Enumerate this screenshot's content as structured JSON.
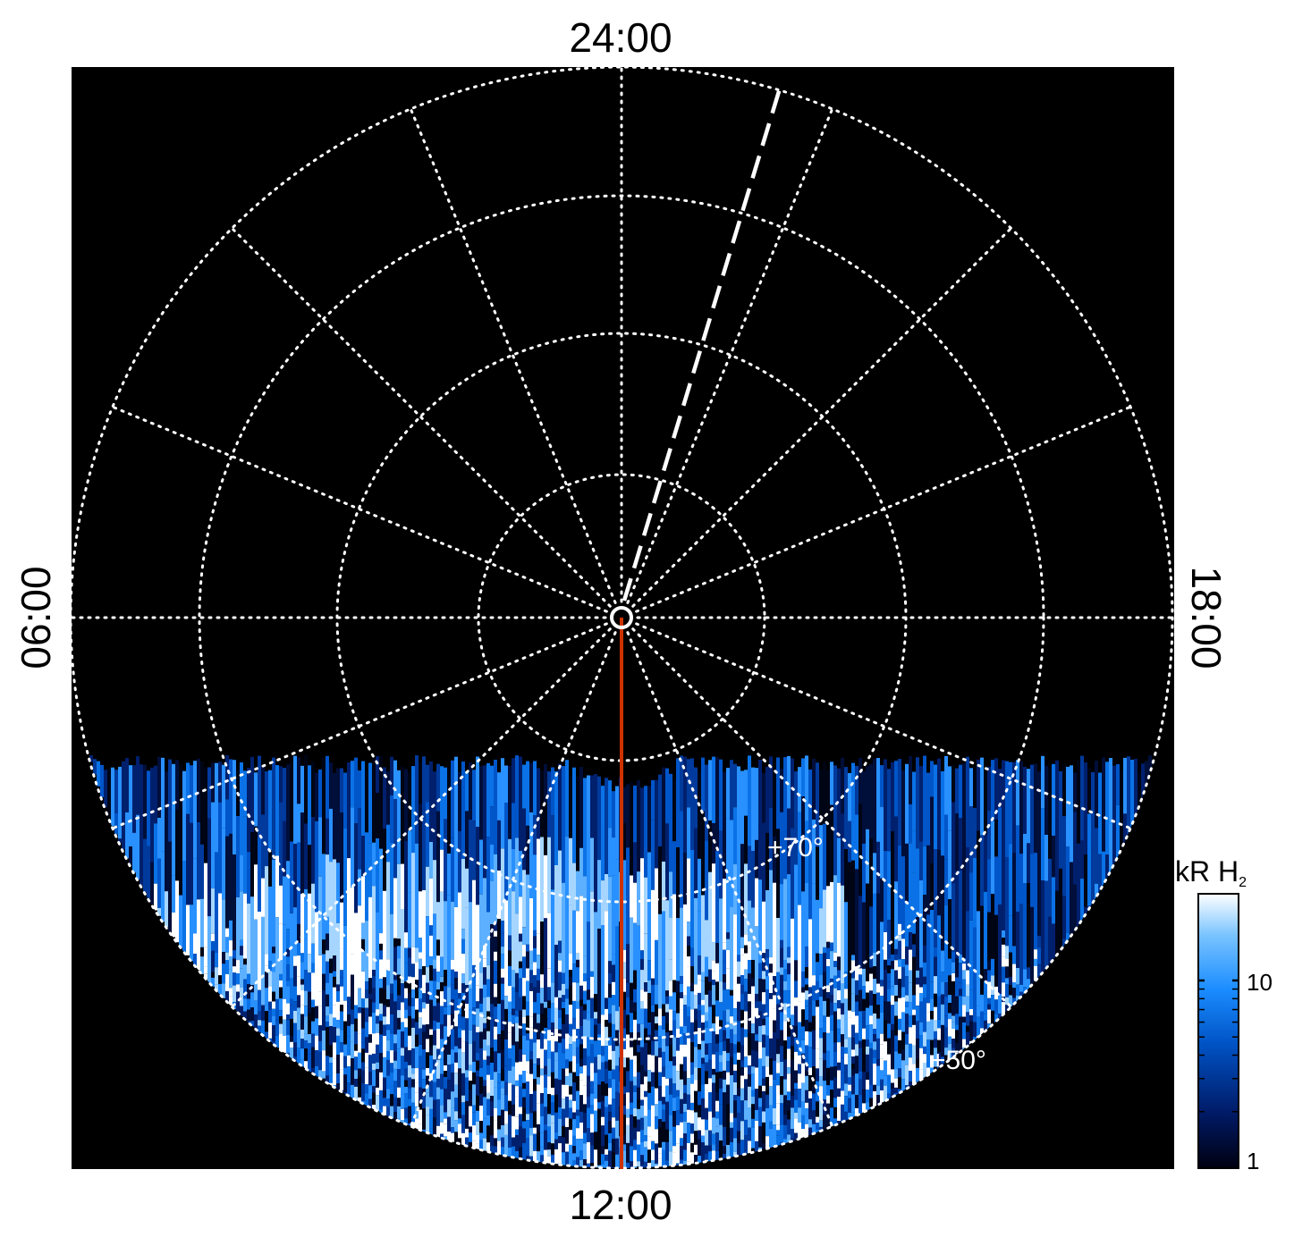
{
  "figure": {
    "local_time_labels": {
      "top": "24:00",
      "bottom": "12:00",
      "left": "06:00",
      "right": "18:00"
    },
    "latitude_labels": {
      "inner": "+70°",
      "outer": "+50°"
    },
    "colorbar": {
      "title_main": "kR H",
      "title_subscript": "2",
      "ticks": [
        "1",
        "10"
      ],
      "scale": "log",
      "colormap": [
        "#000010",
        "#001a66",
        "#0052c4",
        "#1a8cff",
        "#7ac4ff",
        "#ffffff"
      ]
    },
    "colors": {
      "background": "#000000",
      "grid": "#ffffff",
      "meridian_line": "#cc3300",
      "emission_dark": "#000a33",
      "emission_mid": "#0a5ad6",
      "emission_bright": "#ffffff"
    },
    "grid": {
      "local_time_spacing_hours": 1.5,
      "style": "dotted"
    }
  }
}
